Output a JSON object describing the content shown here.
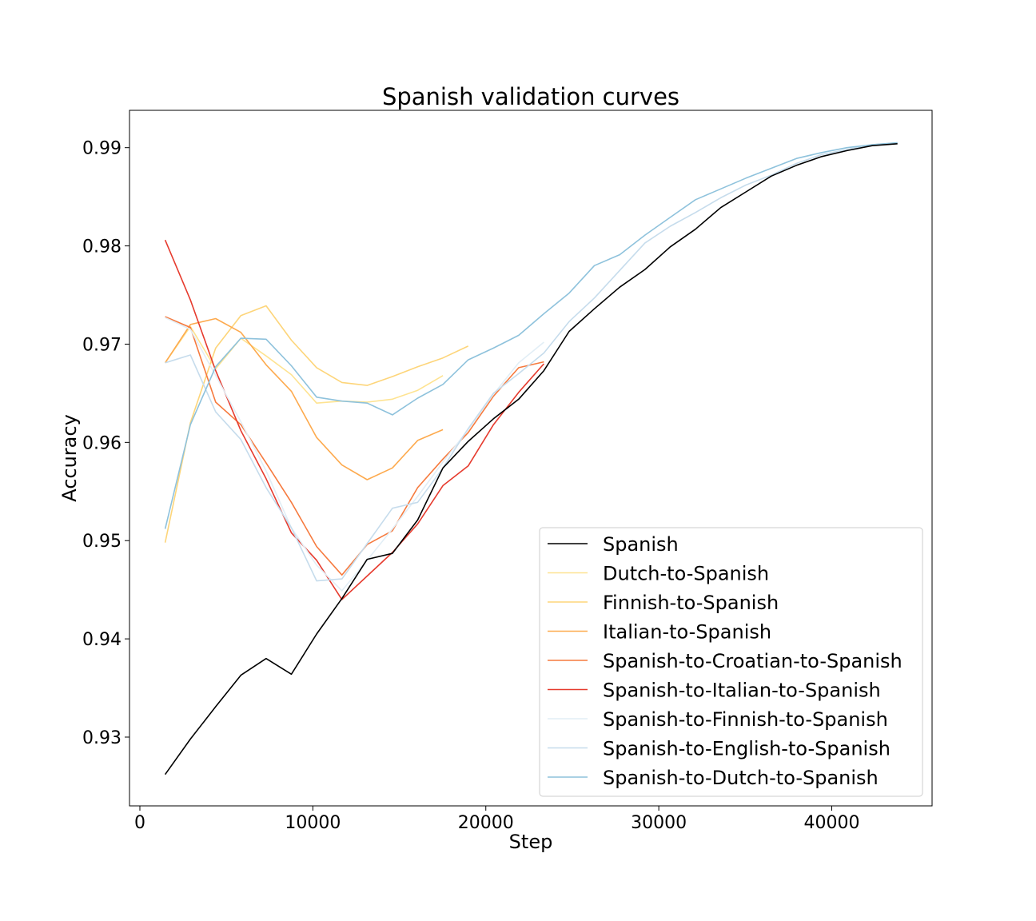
{
  "chart_data": {
    "type": "line",
    "title": "Spanish validation curves",
    "xlabel": "Step",
    "ylabel": "Accuracy",
    "xlim": [
      -600,
      45800
    ],
    "ylim": [
      0.923,
      0.9938
    ],
    "xticks": [
      0,
      10000,
      20000,
      30000,
      40000
    ],
    "yticks": [
      0.93,
      0.94,
      0.95,
      0.96,
      0.97,
      0.98,
      0.99
    ],
    "xtick_labels": [
      "0",
      "10000",
      "20000",
      "30000",
      "40000"
    ],
    "ytick_labels": [
      "0.93",
      "0.94",
      "0.95",
      "0.96",
      "0.97",
      "0.98",
      "0.99"
    ],
    "legend_position": "lower-right",
    "grid": false,
    "series": [
      {
        "name": "Spanish",
        "color": "#000000",
        "x": [
          1460,
          2920,
          4380,
          5840,
          7300,
          8760,
          10220,
          11680,
          13140,
          14600,
          16060,
          17520,
          18980,
          20440,
          21900,
          23360,
          24820,
          26280,
          27740,
          29200,
          30660,
          32120,
          33580,
          35040,
          36500,
          37960,
          39420,
          40880,
          42340,
          43800
        ],
        "y": [
          0.9262,
          0.9298,
          0.9331,
          0.9363,
          0.938,
          0.9364,
          0.9405,
          0.9441,
          0.9481,
          0.9487,
          0.9521,
          0.9574,
          0.9601,
          0.9624,
          0.9644,
          0.9673,
          0.9713,
          0.9736,
          0.9758,
          0.9776,
          0.9799,
          0.9817,
          0.9839,
          0.9855,
          0.9871,
          0.9882,
          0.9891,
          0.9897,
          0.9902,
          0.9904
        ]
      },
      {
        "name": "Dutch-to-Spanish",
        "color": "#fee391",
        "x": [
          1460,
          2920,
          4380,
          5840,
          7300,
          8760,
          10220,
          11680,
          13140,
          14600,
          16060,
          17520
        ],
        "y": [
          0.9681,
          0.9718,
          0.9675,
          0.9706,
          0.9688,
          0.9669,
          0.964,
          0.9642,
          0.9641,
          0.9644,
          0.9653,
          0.9668
        ]
      },
      {
        "name": "Finnish-to-Spanish",
        "color": "#fdd57a",
        "x": [
          1460,
          2920,
          4380,
          5840,
          7300,
          8760,
          10220,
          11680,
          13140,
          14600,
          16060,
          17520,
          18980
        ],
        "y": [
          0.9498,
          0.962,
          0.9696,
          0.9729,
          0.9739,
          0.9704,
          0.9676,
          0.9661,
          0.9658,
          0.9667,
          0.9677,
          0.9686,
          0.9698
        ]
      },
      {
        "name": "Italian-to-Spanish",
        "color": "#fdaa4e",
        "x": [
          1460,
          2920,
          4380,
          5840,
          7300,
          8760,
          10220,
          11680,
          13140,
          14600,
          16060,
          17520
        ],
        "y": [
          0.9681,
          0.972,
          0.9726,
          0.9712,
          0.9679,
          0.9652,
          0.9605,
          0.9577,
          0.9562,
          0.9574,
          0.9602,
          0.9613
        ]
      },
      {
        "name": "Spanish-to-Croatian-to-Spanish",
        "color": "#f67a3e",
        "x": [
          1460,
          2920,
          4380,
          5840,
          7300,
          8760,
          10220,
          11680,
          13140,
          14600,
          16060,
          17520,
          18980,
          20440,
          21900,
          23360
        ],
        "y": [
          0.9728,
          0.9717,
          0.9641,
          0.9618,
          0.9579,
          0.9539,
          0.9494,
          0.9465,
          0.9496,
          0.951,
          0.9554,
          0.9583,
          0.961,
          0.9647,
          0.9676,
          0.9682
        ]
      },
      {
        "name": "Spanish-to-Italian-to-Spanish",
        "color": "#e63b2e",
        "x": [
          1460,
          2920,
          4380,
          5840,
          7300,
          8760,
          10220,
          11680,
          13140,
          14600,
          16060,
          17520,
          18980,
          20440,
          21900,
          23360
        ],
        "y": [
          0.9806,
          0.9745,
          0.9673,
          0.9612,
          0.9563,
          0.9508,
          0.948,
          0.944,
          0.9464,
          0.9488,
          0.9517,
          0.9556,
          0.9576,
          0.9618,
          0.9651,
          0.968
        ]
      },
      {
        "name": "Spanish-to-Finnish-to-Spanish",
        "color": "#e2eef6",
        "x": [
          1460,
          2920,
          4380,
          5840,
          7300,
          8760,
          10220,
          11680,
          13140,
          14600,
          16060,
          17520,
          18980,
          20440,
          21900,
          23360
        ],
        "y": [
          0.9727,
          0.9715,
          0.9668,
          0.9621,
          0.9571,
          0.9513,
          0.9475,
          0.9449,
          0.948,
          0.9512,
          0.9545,
          0.958,
          0.9613,
          0.9649,
          0.9681,
          0.9702
        ]
      },
      {
        "name": "Spanish-to-English-to-Spanish",
        "color": "#c6dcec",
        "x": [
          1460,
          2920,
          4380,
          5840,
          7300,
          8760,
          10220,
          11680,
          13140,
          14600,
          16060,
          17520,
          18980,
          20440,
          21900,
          23360,
          24820,
          26280,
          27740,
          29200,
          30660,
          32120,
          33580,
          35040,
          36500,
          37960,
          39420,
          40880,
          42340,
          43800
        ],
        "y": [
          0.9681,
          0.9689,
          0.9631,
          0.9603,
          0.9554,
          0.9513,
          0.9459,
          0.9461,
          0.9497,
          0.9533,
          0.9539,
          0.9574,
          0.9614,
          0.965,
          0.967,
          0.9691,
          0.9723,
          0.9747,
          0.9775,
          0.9803,
          0.982,
          0.9834,
          0.9849,
          0.9862,
          0.9872,
          0.9884,
          0.9893,
          0.9898,
          0.9903,
          0.9905
        ]
      },
      {
        "name": "Spanish-to-Dutch-to-Spanish",
        "color": "#8ec2dc",
        "x": [
          1460,
          2920,
          4380,
          5840,
          7300,
          8760,
          10220,
          11680,
          13140,
          14600,
          16060,
          17520,
          18980,
          20440,
          21900,
          23360,
          24820,
          26280,
          27740,
          29200,
          30660,
          32120,
          33580,
          35040,
          36500,
          37960,
          39420,
          40880,
          42340,
          43800
        ],
        "y": [
          0.9512,
          0.9618,
          0.9677,
          0.9706,
          0.9705,
          0.9678,
          0.9646,
          0.9642,
          0.964,
          0.9628,
          0.9645,
          0.9659,
          0.9684,
          0.9696,
          0.9709,
          0.9731,
          0.9752,
          0.978,
          0.9791,
          0.9811,
          0.9829,
          0.9847,
          0.9858,
          0.9869,
          0.9879,
          0.9889,
          0.9895,
          0.99,
          0.9903,
          0.9905
        ]
      }
    ]
  }
}
